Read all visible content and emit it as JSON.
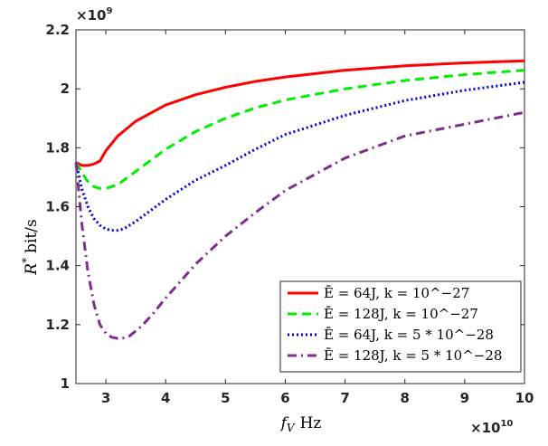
{
  "chart_data": {
    "type": "line",
    "title": "",
    "xlabel": "f_V Hz",
    "ylabel": "R* bit/s",
    "x_multiplier": "×10^10",
    "y_multiplier": "×10^9",
    "xlim": [
      2.5,
      10
    ],
    "ylim": [
      1,
      2.2
    ],
    "x_ticks": [
      "3",
      "4",
      "5",
      "6",
      "7",
      "8",
      "9",
      "10"
    ],
    "y_ticks": [
      "1",
      "1.2",
      "1.4",
      "1.6",
      "1.8",
      "2",
      "2.2"
    ],
    "grid": false,
    "legend_position": "bottom-right",
    "series": [
      {
        "name": "Ē = 64J, k = 10^−27",
        "color": "#ff0000",
        "style": "solid",
        "x": [
          2.5,
          2.6,
          2.7,
          2.8,
          2.9,
          3.0,
          3.2,
          3.5,
          4.0,
          4.5,
          5.0,
          5.5,
          6.0,
          7.0,
          8.0,
          9.0,
          10.0
        ],
        "y": [
          1.75,
          1.74,
          1.74,
          1.745,
          1.755,
          1.79,
          1.84,
          1.89,
          1.945,
          1.98,
          2.005,
          2.025,
          2.04,
          2.063,
          2.078,
          2.088,
          2.095
        ]
      },
      {
        "name": "Ē = 128J, k = 10^−27",
        "color": "#00ee00",
        "style": "dashed",
        "x": [
          2.5,
          2.6,
          2.7,
          2.8,
          2.9,
          3.0,
          3.2,
          3.5,
          4.0,
          4.5,
          5.0,
          5.5,
          6.0,
          7.0,
          8.0,
          9.0,
          10.0
        ],
        "y": [
          1.75,
          1.715,
          1.685,
          1.668,
          1.662,
          1.662,
          1.675,
          1.72,
          1.795,
          1.855,
          1.9,
          1.935,
          1.962,
          2.0,
          2.028,
          2.048,
          2.063
        ]
      },
      {
        "name": "Ē = 64J, k = 5 * 10^−28",
        "color": "#0000dd",
        "style": "dotted",
        "x": [
          2.5,
          2.6,
          2.7,
          2.8,
          2.9,
          3.0,
          3.1,
          3.2,
          3.3,
          3.5,
          4.0,
          4.5,
          5.0,
          5.5,
          6.0,
          7.0,
          8.0,
          9.0,
          10.0
        ],
        "y": [
          1.75,
          1.66,
          1.6,
          1.56,
          1.537,
          1.524,
          1.52,
          1.52,
          1.525,
          1.55,
          1.625,
          1.69,
          1.74,
          1.795,
          1.845,
          1.91,
          1.96,
          1.995,
          2.022
        ]
      },
      {
        "name": "Ē = 128J, k = 5 * 10^−28",
        "color": "#7e2f8e",
        "style": "dashdot",
        "x": [
          2.5,
          2.6,
          2.7,
          2.8,
          2.9,
          3.0,
          3.1,
          3.2,
          3.3,
          3.4,
          3.6,
          3.8,
          4.0,
          4.5,
          5.0,
          5.5,
          6.0,
          7.0,
          8.0,
          9.0,
          10.0
        ],
        "y": [
          1.75,
          1.54,
          1.38,
          1.27,
          1.2,
          1.17,
          1.157,
          1.153,
          1.155,
          1.162,
          1.195,
          1.24,
          1.29,
          1.405,
          1.5,
          1.58,
          1.655,
          1.765,
          1.84,
          1.88,
          1.92
        ]
      }
    ]
  }
}
